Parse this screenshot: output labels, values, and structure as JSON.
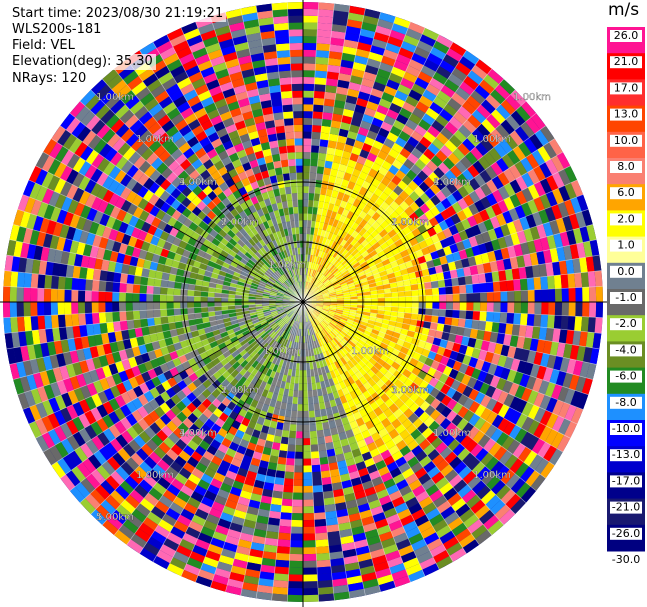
{
  "header": {
    "start_time": "Start time: 2023/08/30 21:19:21",
    "instrument": "WLS200s-181",
    "field": "Field: VEL",
    "elevation": "Elevation(deg): 35.30",
    "nrays": "NRays: 120"
  },
  "ring_labels": [
    "1.00km",
    "1.00km",
    "1.00km",
    "1.00km",
    "1.00km",
    "1.00km",
    "1.00km",
    "1.00km",
    "1.00km",
    "1.00km",
    "1.00km",
    "1.00km",
    "1.00km",
    "1.00km",
    "1.00km",
    "1.00km",
    "1.00km",
    "1.00km",
    "2.00km",
    "2.00km",
    "2.00km",
    "3.00km",
    "4.00km",
    "4.00km",
    "4.00km",
    "5.00km"
  ],
  "colorbar": {
    "unit": "m/s",
    "ticks": [
      "26.0",
      "21.0",
      "17.0",
      "13.0",
      "10.0",
      "8.0",
      "6.0",
      "2.0",
      "1.0",
      "0.0",
      "-1.0",
      "-2.0",
      "-4.0",
      "-6.0",
      "-8.0",
      "-10.0",
      "-13.0",
      "-17.0",
      "-21.0",
      "-26.0",
      "-30.0"
    ],
    "colors": [
      "#ff1493",
      "#ff0000",
      "#ff2d2d",
      "#ff4500",
      "#ff6347",
      "#fa8072",
      "#ffa500",
      "#ffff00",
      "#ffff99",
      "#708090",
      "#696969",
      "#9acd32",
      "#6b8e23",
      "#228b22",
      "#1e90ff",
      "#0000ff",
      "#0000cd",
      "#00008b",
      "#191970",
      "#000080"
    ]
  },
  "chart_data": {
    "type": "ppi",
    "field": "VEL",
    "elevation_deg": 35.3,
    "n_rays": 120,
    "unit": "m/s"
  }
}
